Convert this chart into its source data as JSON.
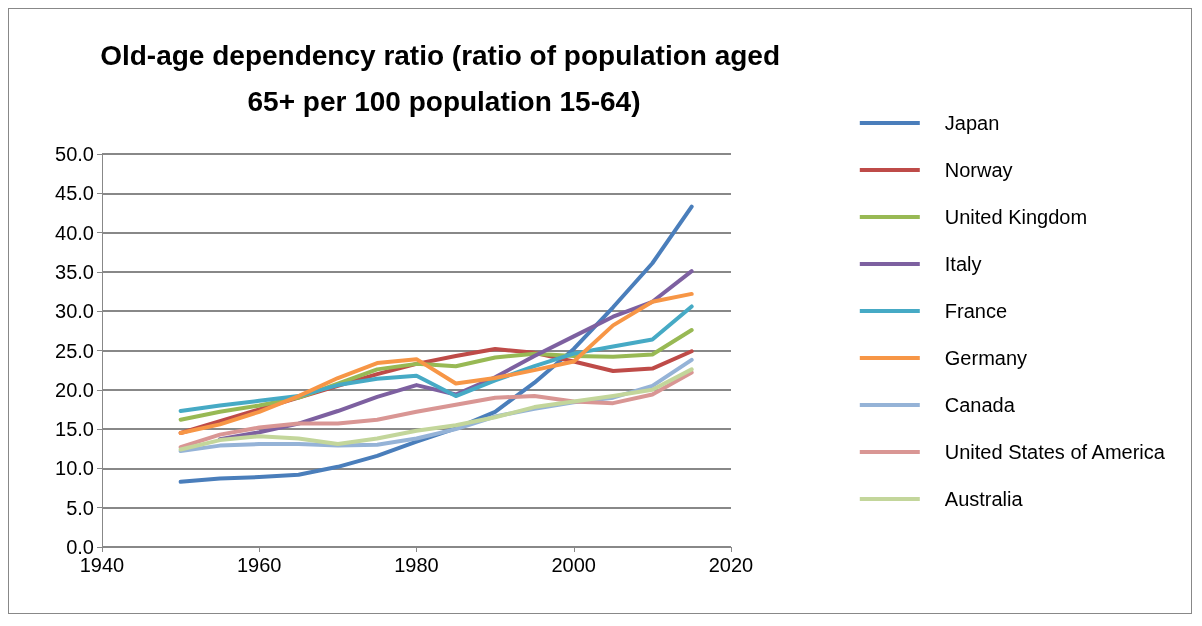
{
  "chart_data": {
    "type": "line",
    "title": "Old-age dependency ratio (ratio of population aged 65+ per 100 population 15-64)",
    "x": [
      1950,
      1955,
      1960,
      1965,
      1970,
      1975,
      1980,
      1985,
      1990,
      1995,
      2000,
      2005,
      2010,
      2015
    ],
    "xlim": [
      1940,
      2020
    ],
    "xticks": [
      1940,
      1960,
      1980,
      2000,
      2020
    ],
    "ylim": [
      0,
      50
    ],
    "yticks": [
      {
        "value": 0,
        "label": "0.0"
      },
      {
        "value": 5,
        "label": "5.0"
      },
      {
        "value": 10,
        "label": "10.0"
      },
      {
        "value": 15,
        "label": "15.0"
      },
      {
        "value": 20,
        "label": "20.0"
      },
      {
        "value": 25,
        "label": "25.0"
      },
      {
        "value": 30,
        "label": "30.0"
      },
      {
        "value": 35,
        "label": "35.0"
      },
      {
        "value": 40,
        "label": "40.0"
      },
      {
        "value": 45,
        "label": "45.0"
      },
      {
        "value": 50,
        "label": "50.0"
      }
    ],
    "grid": "y",
    "legend": "right",
    "marker": "none",
    "series": [
      {
        "name": "Japan",
        "color": "#4a7ebb",
        "values": [
          8.3,
          8.7,
          8.9,
          9.2,
          10.2,
          11.6,
          13.4,
          15.1,
          17.2,
          20.9,
          25.2,
          30.5,
          36.1,
          43.3
        ]
      },
      {
        "name": "Norway",
        "color": "#be4b48",
        "values": [
          14.5,
          16.0,
          17.5,
          19.0,
          20.5,
          22.0,
          23.3,
          24.3,
          25.2,
          24.7,
          23.6,
          22.4,
          22.7,
          24.9
        ]
      },
      {
        "name": "United Kingdom",
        "color": "#98b954",
        "values": [
          16.2,
          17.2,
          18.0,
          19.0,
          20.8,
          22.6,
          23.3,
          23.0,
          24.1,
          24.6,
          24.3,
          24.2,
          24.5,
          27.6
        ]
      },
      {
        "name": "Italy",
        "color": "#7d60a0",
        "values": [
          null,
          13.7,
          14.6,
          15.7,
          17.3,
          19.1,
          20.6,
          19.4,
          21.6,
          24.3,
          26.8,
          29.3,
          31.2,
          35.1
        ]
      },
      {
        "name": "France",
        "color": "#46aac5",
        "values": [
          17.3,
          18.0,
          18.6,
          19.2,
          20.6,
          21.4,
          21.8,
          19.2,
          21.2,
          23.0,
          24.6,
          25.5,
          26.4,
          30.6
        ]
      },
      {
        "name": "Germany",
        "color": "#f79646",
        "values": [
          14.5,
          15.6,
          17.2,
          19.2,
          21.5,
          23.4,
          23.9,
          20.8,
          21.5,
          22.5,
          23.6,
          28.2,
          31.2,
          32.2
        ]
      },
      {
        "name": "Canada",
        "color": "#95b3d7",
        "values": [
          12.2,
          12.9,
          13.1,
          13.1,
          12.9,
          13.0,
          13.8,
          15.0,
          16.6,
          17.6,
          18.4,
          19.0,
          20.5,
          23.8
        ]
      },
      {
        "name": "United States of America",
        "color": "#d99694",
        "values": [
          12.7,
          14.3,
          15.2,
          15.7,
          15.7,
          16.2,
          17.2,
          18.1,
          19.0,
          19.2,
          18.5,
          18.3,
          19.4,
          22.2
        ]
      },
      {
        "name": "Australia",
        "color": "#c3d69b",
        "values": [
          12.4,
          13.6,
          14.1,
          13.8,
          13.1,
          13.8,
          14.8,
          15.5,
          16.5,
          17.8,
          18.5,
          19.2,
          20.0,
          22.6
        ]
      }
    ]
  }
}
